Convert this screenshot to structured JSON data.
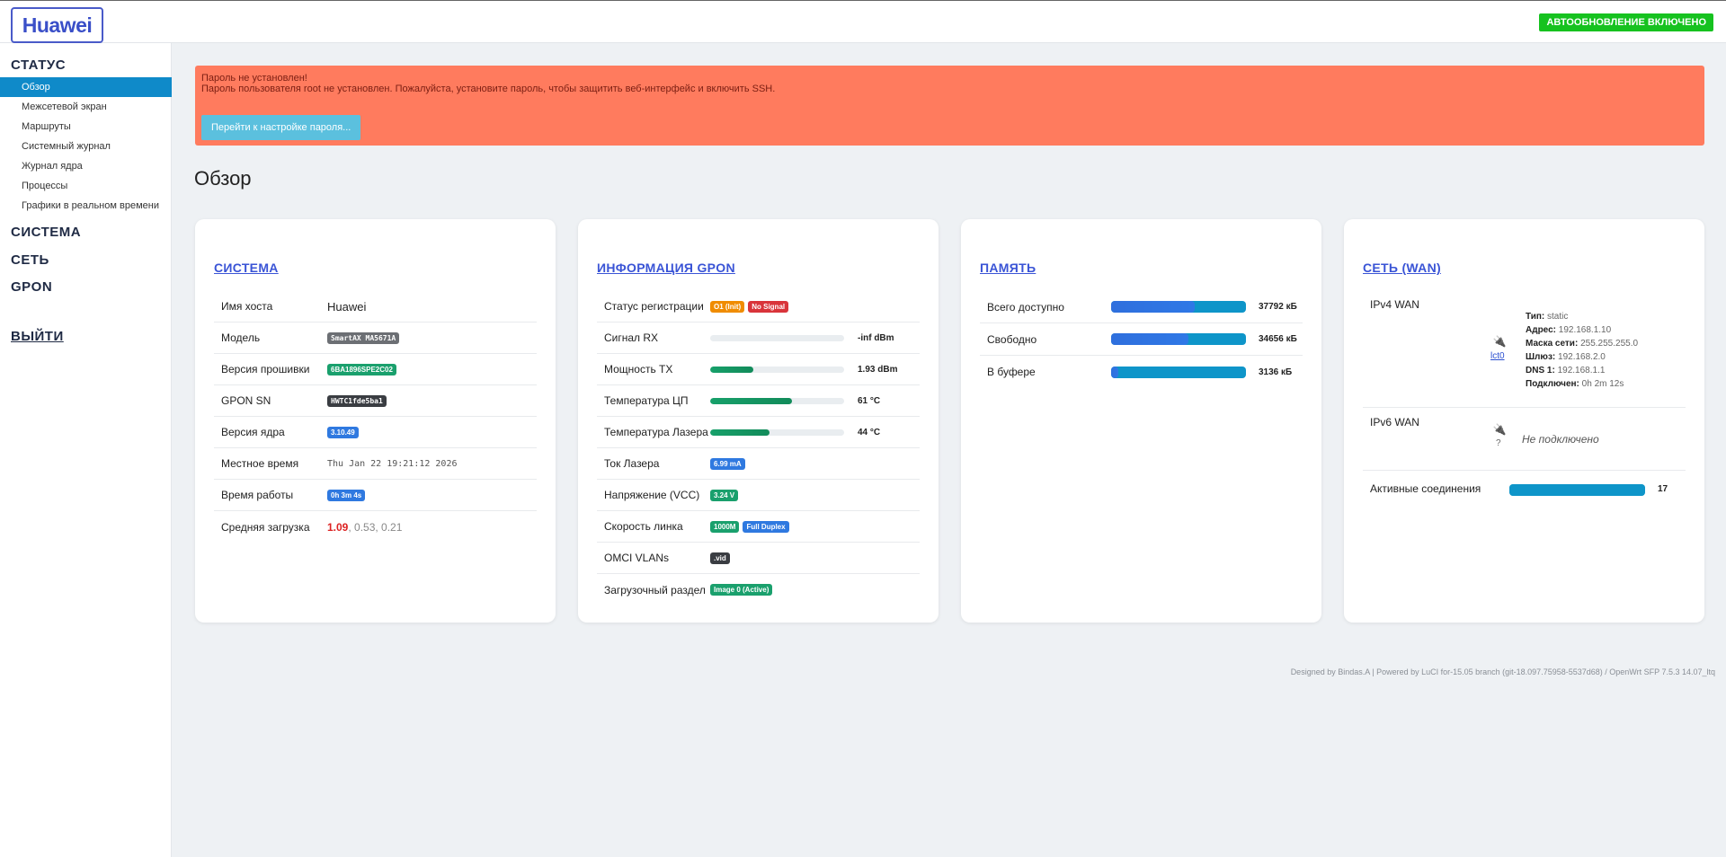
{
  "header": {
    "brand": "Huawei",
    "auto_refresh": "АВТООБНОВЛЕНИЕ ВКЛЮЧЕНО"
  },
  "sidebar": {
    "status": "СТАТУС",
    "items": [
      "Обзор",
      "Межсетевой экран",
      "Маршруты",
      "Системный журнал",
      "Журнал ядра",
      "Процессы",
      "Графики в реальном времени"
    ],
    "system": "СИСТЕМА",
    "network": "СЕТЬ",
    "gpon": "GPON",
    "logout": "ВЫЙТИ"
  },
  "alert": {
    "title": "Пароль не установлен!",
    "message": "Пароль пользователя root не установлен. Пожалуйста, установите пароль, чтобы защитить веб-интерфейс и включить SSH.",
    "button": "Перейти к настройке пароля..."
  },
  "page_title": "Обзор",
  "system_card": {
    "title": "СИСТЕМА",
    "hostname_label": "Имя хоста",
    "hostname": "Huawei",
    "model_label": "Модель",
    "model": "SmartAX MA5671A",
    "firmware_label": "Версия прошивки",
    "firmware": "6BA1896SPE2C02",
    "gpon_sn_label": "GPON SN",
    "gpon_sn": "HWTC1fde5ba1",
    "kernel_label": "Версия ядра",
    "kernel": "3.10.49",
    "localtime_label": "Местное время",
    "localtime": "Thu Jan 22 19:21:12 2026",
    "uptime_label": "Время работы",
    "uptime": "0h 3m 4s",
    "load_label": "Средняя загрузка",
    "load_1": "1.09",
    "load_rest": ", 0.53, 0.21"
  },
  "gpon_card": {
    "title": "ИНФОРМАЦИЯ GPON",
    "reg_label": "Статус регистрации",
    "reg_state": "O1 (Init)",
    "reg_signal": "No Signal",
    "rx_label": "Сигнал RX",
    "rx_value": "-inf dBm",
    "rx_fraction": 0,
    "tx_label": "Мощность TX",
    "tx_value": "1.93 dBm",
    "tx_fraction": 0.32,
    "cpu_temp_label": "Температура ЦП",
    "cpu_temp_value": "61 °C",
    "cpu_temp_fraction": 0.61,
    "laser_temp_label": "Температура Лазера",
    "laser_temp_value": "44 °C",
    "laser_temp_fraction": 0.44,
    "laser_current_label": "Ток Лазера",
    "laser_current": "6.99 mA",
    "vcc_label": "Напряжение (VCC)",
    "vcc": "3.24 V",
    "link_label": "Скорость линка",
    "link_speed": "1000M",
    "link_duplex": "Full Duplex",
    "omci_label": "OMCI VLANs",
    "omci_value": ".vid",
    "boot_label": "Загрузочный раздел",
    "boot_value": "Image 0 (Active)"
  },
  "memory_card": {
    "title": "ПАМЯТЬ",
    "total_label": "Всего доступно",
    "total_value": "37792 кБ",
    "total_fraction": 0.62,
    "free_label": "Свободно",
    "free_value": "34656 кБ",
    "free_fraction": 0.57,
    "buffer_label": "В буфере",
    "buffer_value": "3136 кБ",
    "buffer_fraction": 0.05
  },
  "wan_card": {
    "title": "СЕТЬ (WAN)",
    "ipv4_label": "IPv4 WAN",
    "ipv4_iface": "lct0",
    "type_k": "Тип:",
    "type_v": "static",
    "addr_k": "Адрес:",
    "addr_v": "192.168.1.10",
    "mask_k": "Маска сети:",
    "mask_v": "255.255.255.0",
    "gw_k": "Шлюз:",
    "gw_v": "192.168.2.0",
    "dns_k": "DNS 1:",
    "dns_v": "192.168.1.1",
    "conn_k": "Подключен:",
    "conn_v": "0h 2m 12s",
    "ipv6_label": "IPv6 WAN",
    "ipv6_iface": "?",
    "ipv6_status": "Не подключено",
    "active_label": "Активные соединения",
    "active_value": "17",
    "active_fraction": 1
  },
  "footer": "Designed by Bindas.A | Powered by LuCI for-15.05 branch (git-18.097.75958-5537d68) / OpenWrt SFP 7.5.3 14.07_ltq",
  "colors": {
    "accent": "#0f8ac9",
    "alert": "#ff7b5e",
    "brand": "#3a4fc8",
    "auto_badge": "#16c21f"
  }
}
